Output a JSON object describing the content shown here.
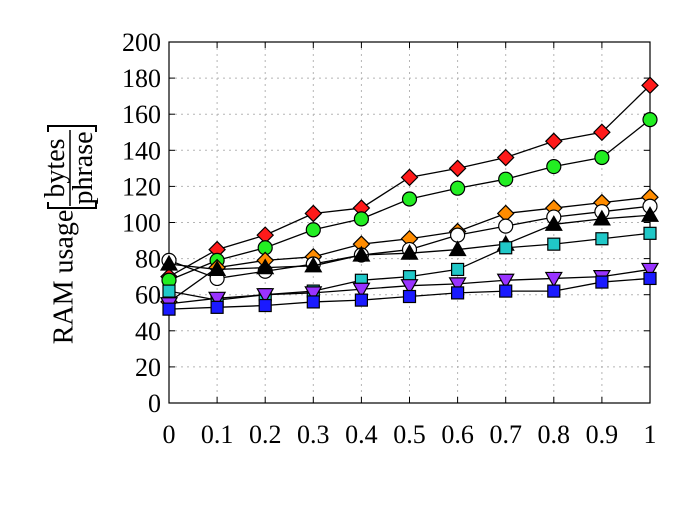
{
  "chart_data": {
    "type": "line",
    "ylabel": {
      "prefix": "RAM usage",
      "numerator": "bytes",
      "denominator": "phrase"
    },
    "xlim": [
      0,
      1
    ],
    "ylim": [
      0,
      200
    ],
    "xticks": [
      "0",
      "0.1",
      "0.2",
      "0.3",
      "0.4",
      "0.5",
      "0.6",
      "0.7",
      "0.8",
      "0.9",
      "1"
    ],
    "yticks": [
      "0",
      "20",
      "40",
      "60",
      "80",
      "100",
      "120",
      "140",
      "160",
      "180",
      "200"
    ],
    "grid": true,
    "x": [
      0,
      0.1,
      0.2,
      0.3,
      0.4,
      0.5,
      0.6,
      0.7,
      0.8,
      0.9,
      1
    ],
    "series": [
      {
        "color": "#ff1a1a",
        "marker": "diamond",
        "values": [
          70,
          85,
          93,
          105,
          108,
          125,
          130,
          136,
          145,
          150,
          176
        ]
      },
      {
        "color": "#22ee22",
        "marker": "circle",
        "values": [
          68,
          79,
          86,
          96,
          102,
          113,
          119,
          124,
          131,
          136,
          157
        ]
      },
      {
        "color": "#ff8c00",
        "marker": "diamond",
        "values": [
          56,
          75,
          79,
          81,
          88,
          91,
          95,
          105,
          108,
          111,
          114
        ]
      },
      {
        "color": "#ffffff",
        "marker": "circle",
        "values": [
          79,
          69,
          73,
          77,
          82,
          85,
          93,
          98,
          103,
          106,
          109
        ]
      },
      {
        "color": "#000000",
        "marker": "triangle-up",
        "values": [
          77,
          74,
          75,
          76,
          82,
          83,
          85,
          88,
          99,
          102,
          104
        ]
      },
      {
        "color": "#20c8c8",
        "marker": "square",
        "values": [
          62,
          57,
          60,
          62,
          68,
          70,
          74,
          86,
          88,
          91,
          94
        ]
      },
      {
        "color": "#9933ff",
        "marker": "triangle-down",
        "values": [
          55,
          58,
          60,
          61,
          63,
          65,
          66,
          68,
          69,
          70,
          74
        ]
      },
      {
        "color": "#1a1aff",
        "marker": "square",
        "values": [
          52,
          53,
          54,
          56,
          57,
          59,
          61,
          62,
          62,
          67,
          69
        ]
      }
    ]
  }
}
